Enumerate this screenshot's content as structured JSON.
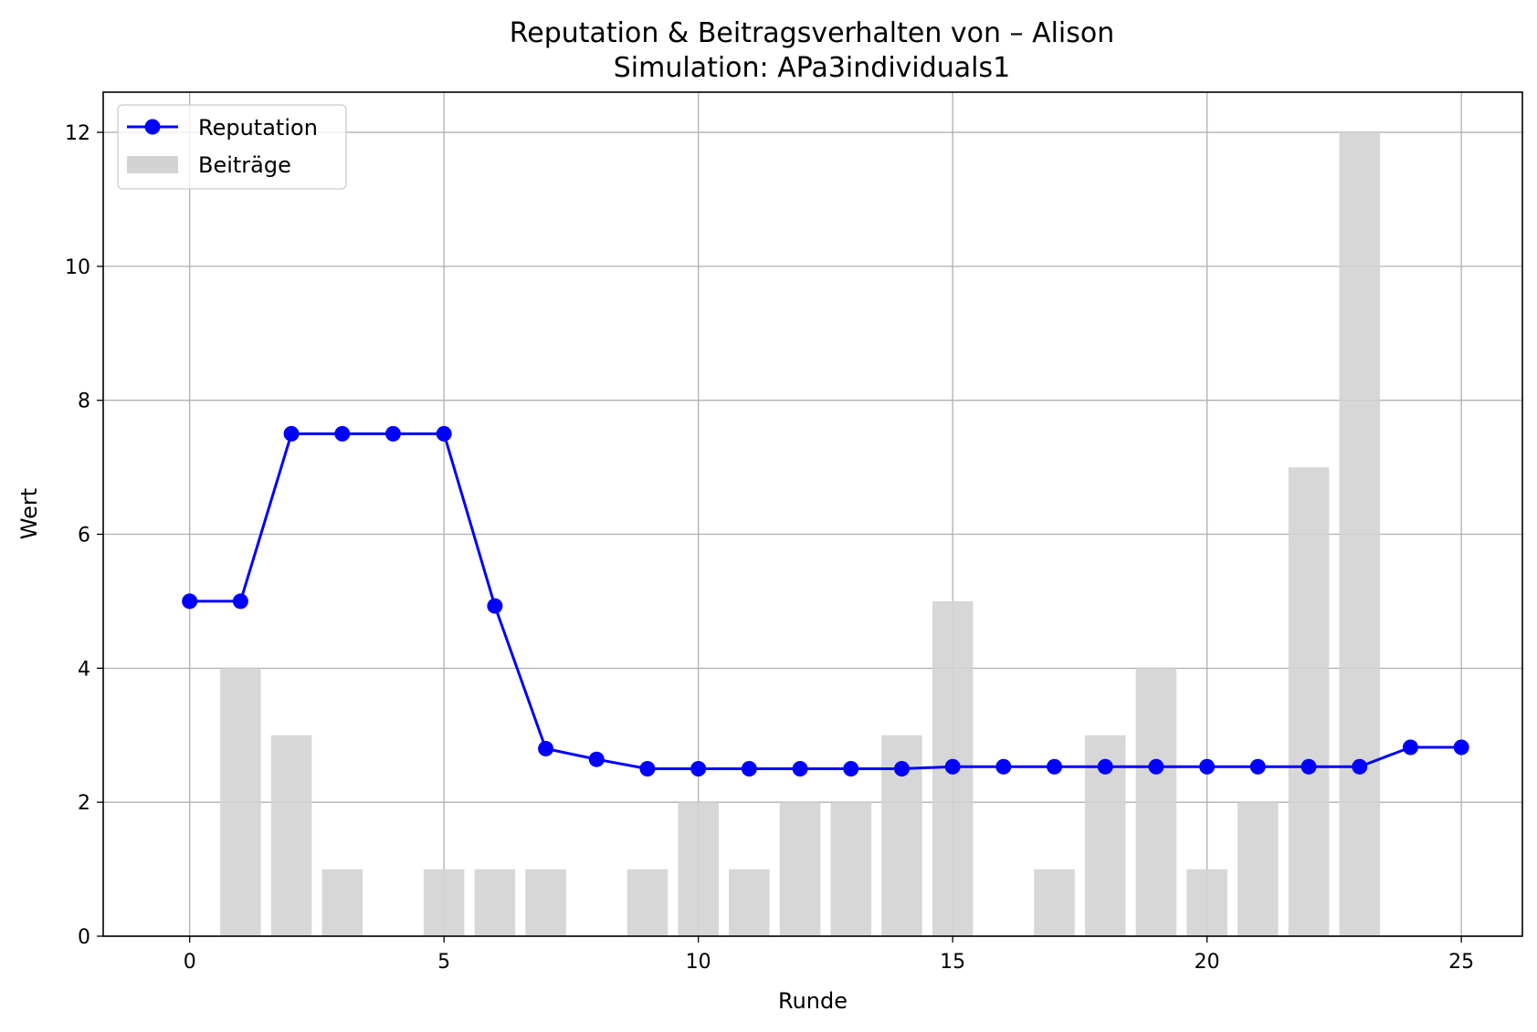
{
  "chart_data": {
    "type": "bar+line",
    "title": "Reputation & Beitragsverhalten von – Alison",
    "subtitle": "Simulation: APa3individuals1",
    "xlabel": "Runde",
    "ylabel": "Wert",
    "xlim": [
      -1.7,
      26.2
    ],
    "ylim": [
      0,
      12.6
    ],
    "xticks": [
      0,
      5,
      10,
      15,
      20,
      25
    ],
    "yticks": [
      0,
      2,
      4,
      6,
      8,
      10,
      12
    ],
    "grid": true,
    "legend_position": "top-left",
    "x": [
      0,
      1,
      2,
      3,
      4,
      5,
      6,
      7,
      8,
      9,
      10,
      11,
      12,
      13,
      14,
      15,
      16,
      17,
      18,
      19,
      20,
      21,
      22,
      23,
      24,
      25
    ],
    "series": [
      {
        "name": "Reputation",
        "kind": "line",
        "color": "#0000ff",
        "values": [
          5.0,
          5.0,
          7.5,
          7.5,
          7.5,
          7.5,
          4.93,
          2.8,
          2.64,
          2.5,
          2.5,
          2.5,
          2.5,
          2.5,
          2.5,
          2.53,
          2.53,
          2.53,
          2.53,
          2.53,
          2.53,
          2.53,
          2.53,
          2.53,
          2.82,
          2.82
        ]
      },
      {
        "name": "Beiträge",
        "kind": "bar",
        "color": "#d3d3d3",
        "values": [
          0,
          4,
          3,
          1,
          0,
          1,
          1,
          1,
          0,
          1,
          2,
          1,
          2,
          2,
          3,
          5,
          0,
          1,
          3,
          4,
          1,
          2,
          7,
          12,
          0,
          0
        ]
      }
    ]
  }
}
